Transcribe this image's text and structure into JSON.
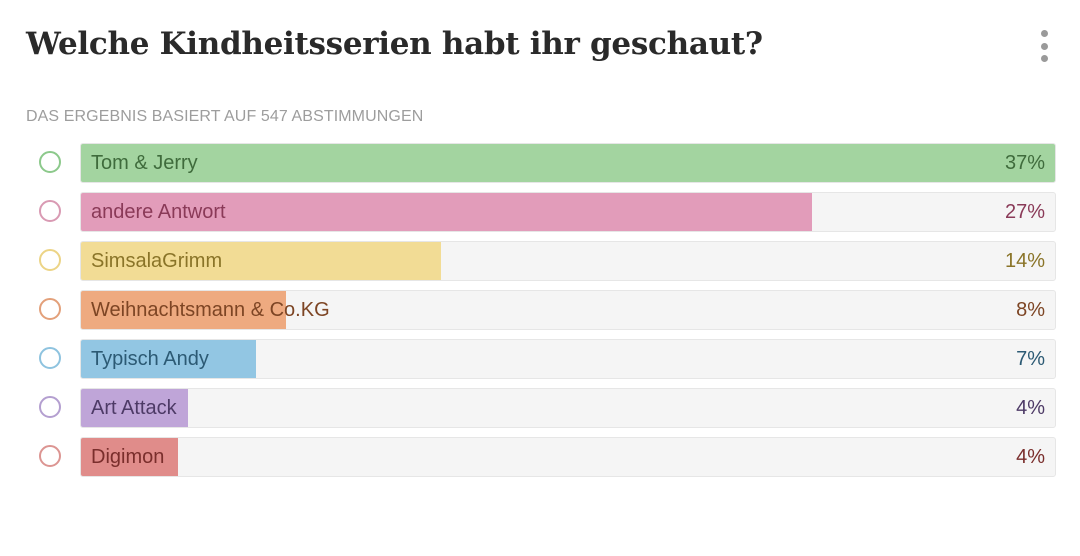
{
  "poll": {
    "title": "Welche Kindheitsserien habt ihr geschaut?",
    "subtitle": "DAS ERGEBNIS BASIERT AUF 547 ABSTIMMUNGEN",
    "menu_icon": "more-vertical-icon",
    "options": [
      {
        "label": "Tom & Jerry",
        "percent_label": "37%",
        "fill_fraction": 1.0,
        "fill_color": "#a3d4a0",
        "ring_color": "#8cc98b",
        "text_color": "#3f6b3c"
      },
      {
        "label": "andere Antwort",
        "percent_label": "27%",
        "fill_fraction": 0.75,
        "fill_color": "#e29cba",
        "ring_color": "#d99ab3",
        "text_color": "#8a3a58"
      },
      {
        "label": "SimsalaGrimm",
        "percent_label": "14%",
        "fill_fraction": 0.37,
        "fill_color": "#f2dc95",
        "ring_color": "#ecd486",
        "text_color": "#8a7428"
      },
      {
        "label": "Weihnachtsmann & Co.KG",
        "percent_label": "8%",
        "fill_fraction": 0.21,
        "fill_color": "#eeaa80",
        "ring_color": "#e3a07a",
        "text_color": "#7d4524"
      },
      {
        "label": "Typisch Andy",
        "percent_label": "7%",
        "fill_fraction": 0.18,
        "fill_color": "#92c6e3",
        "ring_color": "#8ec3df",
        "text_color": "#2c5a74"
      },
      {
        "label": "Art Attack",
        "percent_label": "4%",
        "fill_fraction": 0.11,
        "fill_color": "#bfa5d8",
        "ring_color": "#b49fd0",
        "text_color": "#4d3a66"
      },
      {
        "label": "Digimon",
        "percent_label": "4%",
        "fill_fraction": 0.1,
        "fill_color": "#e08c8a",
        "ring_color": "#dc9592",
        "text_color": "#7a2e2c"
      }
    ]
  }
}
